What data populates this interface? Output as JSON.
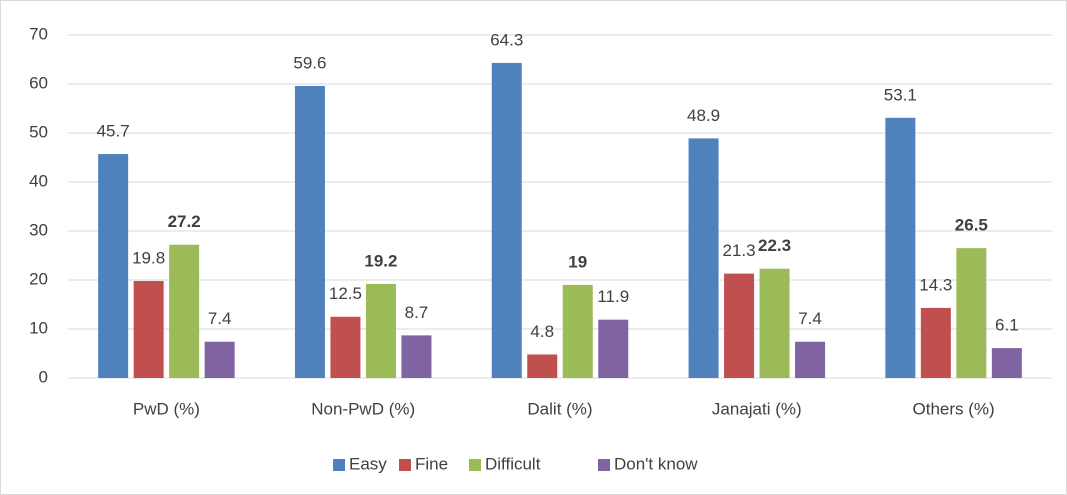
{
  "chart_data": {
    "type": "bar",
    "categories": [
      "PwD (%)",
      "Non-PwD (%)",
      "Dalit (%)",
      "Janajati (%)",
      "Others (%)"
    ],
    "series": [
      {
        "name": "Easy",
        "color": "#4f81bd",
        "values": [
          45.7,
          59.6,
          64.3,
          48.9,
          53.1
        ]
      },
      {
        "name": "Fine",
        "color": "#c0504d",
        "values": [
          19.8,
          12.5,
          4.8,
          21.3,
          14.3
        ]
      },
      {
        "name": "Difficult",
        "color": "#9bbb59",
        "values": [
          27.2,
          19.2,
          19,
          22.3,
          26.5
        ],
        "label_bold": true
      },
      {
        "name": "Don't know",
        "color": "#8064a2",
        "values": [
          7.4,
          8.7,
          11.9,
          7.4,
          6.1
        ]
      }
    ],
    "ylim": [
      0,
      70
    ],
    "yticks": [
      0,
      10,
      20,
      30,
      40,
      50,
      60,
      70
    ],
    "grid": true,
    "legend": "bottom"
  }
}
